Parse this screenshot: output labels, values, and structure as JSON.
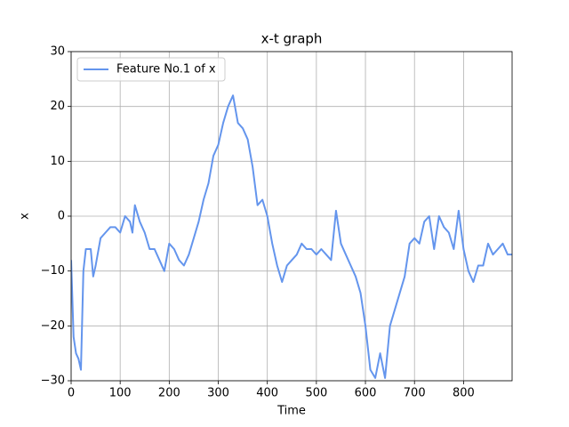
{
  "chart_data": {
    "type": "line",
    "title": "x-t graph",
    "x_label": "Time",
    "y_label": "x",
    "x": [
      0,
      5,
      10,
      15,
      20,
      25,
      30,
      40,
      45,
      50,
      60,
      70,
      80,
      90,
      100,
      110,
      120,
      125,
      130,
      140,
      150,
      160,
      170,
      180,
      190,
      200,
      210,
      220,
      230,
      240,
      250,
      260,
      270,
      280,
      290,
      300,
      310,
      320,
      330,
      340,
      350,
      360,
      370,
      380,
      390,
      400,
      410,
      420,
      430,
      440,
      450,
      460,
      470,
      480,
      490,
      500,
      510,
      520,
      530,
      540,
      550,
      560,
      570,
      580,
      590,
      600,
      610,
      620,
      630,
      640,
      650,
      660,
      670,
      680,
      690,
      700,
      710,
      720,
      730,
      740,
      750,
      760,
      770,
      780,
      790,
      800,
      810,
      820,
      830,
      840,
      850,
      860,
      870,
      880,
      890,
      899
    ],
    "series": [
      {
        "name": "Feature No.1 of x",
        "color": "#6495ed",
        "values": [
          -8,
          -22,
          -25,
          -26,
          -28,
          -10,
          -6,
          -6,
          -11,
          -9,
          -4,
          -3,
          -2,
          -2,
          -3,
          0,
          -1,
          -3,
          2,
          -1,
          -3,
          -6,
          -6,
          -8,
          -10,
          -5,
          -6,
          -8,
          -9,
          -7,
          -4,
          -1,
          3,
          6,
          11,
          13,
          17,
          20,
          22,
          17,
          16,
          14,
          9,
          2,
          3,
          0,
          -5,
          -9,
          -12,
          -9,
          -8,
          -7,
          -5,
          -6,
          -6,
          -7,
          -6,
          -7,
          -8,
          1,
          -5,
          -7,
          -9,
          -11,
          -14,
          -20,
          -28,
          -29.5,
          -25,
          -29.5,
          -20,
          -17,
          -14,
          -11,
          -5,
          -4,
          -5,
          -1,
          0,
          -6,
          0,
          -2,
          -3,
          -6,
          1,
          -6,
          -10,
          -12,
          -9,
          -9,
          -5,
          -7,
          -6,
          -5,
          -7,
          -7
        ]
      }
    ],
    "xlim": [
      0,
      899
    ],
    "ylim": [
      -30,
      30
    ],
    "xticks": [
      0,
      100,
      200,
      300,
      400,
      500,
      600,
      700,
      800
    ],
    "yticks": [
      {
        "value": -30,
        "label": "−30"
      },
      {
        "value": -20,
        "label": "−20"
      },
      {
        "value": -10,
        "label": "−10"
      },
      0,
      10,
      20,
      30
    ],
    "grid": true,
    "legend": "upper left"
  }
}
